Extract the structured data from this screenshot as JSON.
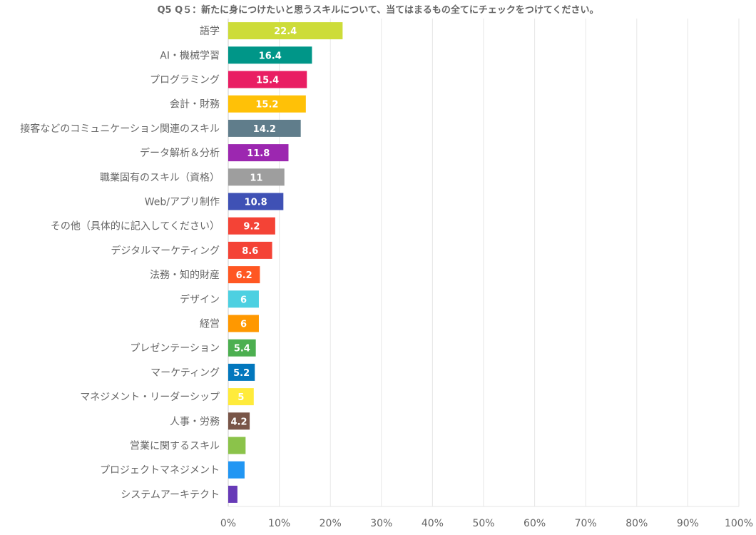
{
  "chart_data": {
    "type": "bar",
    "orientation": "horizontal",
    "title": "Q5 Q５：新たに身につけたいと思うスキルについて、当てはまるもの全てにチェックをつけてください。",
    "xlabel": "",
    "ylabel": "",
    "xlim": [
      0,
      100
    ],
    "x_tick_labels": [
      "0%",
      "10%",
      "20%",
      "30%",
      "40%",
      "50%",
      "60%",
      "70%",
      "80%",
      "90%",
      "100%"
    ],
    "grid": true,
    "legend": "none",
    "categories": [
      "語学",
      "AI・機械学習",
      "プログラミング",
      "会計・財務",
      "接客などのコミュニケーション関連のスキル",
      "データ解析＆分析",
      "職業固有のスキル（資格）",
      "Web/アプリ制作",
      "その他（具体的に記入してください）",
      "デジタルマーケティング",
      "法務・知的財産",
      "デザイン",
      "経営",
      "プレゼンテーション",
      "マーケティング",
      "マネジメント・リーダーシップ",
      "人事・労務",
      "営業に関するスキル",
      "プロジェクトマネジメント",
      "システムアーキテクト"
    ],
    "values": [
      22.4,
      16.4,
      15.4,
      15.2,
      14.2,
      11.8,
      11,
      10.8,
      9.2,
      8.6,
      6.2,
      6,
      6,
      5.4,
      5.2,
      5,
      4.2,
      3.4,
      3.2,
      1.8
    ],
    "data_labels": [
      "22.4",
      "16.4",
      "15.4",
      "15.2",
      "14.2",
      "11.8",
      "11",
      "10.8",
      "9.2",
      "8.6",
      "6.2",
      "6",
      "6",
      "5.4",
      "5.2",
      "5",
      "4.2",
      "",
      "",
      ""
    ],
    "colors": [
      "#cddc39",
      "#009688",
      "#e91e63",
      "#ffc107",
      "#607d8b",
      "#9c27b0",
      "#9e9e9e",
      "#3f51b5",
      "#f44336",
      "#f44336",
      "#ff5722",
      "#4dd0e1",
      "#ff9800",
      "#4caf50",
      "#0277bd",
      "#ffeb3b",
      "#795548",
      "#8bc34a",
      "#2196f3",
      "#673ab7"
    ]
  }
}
